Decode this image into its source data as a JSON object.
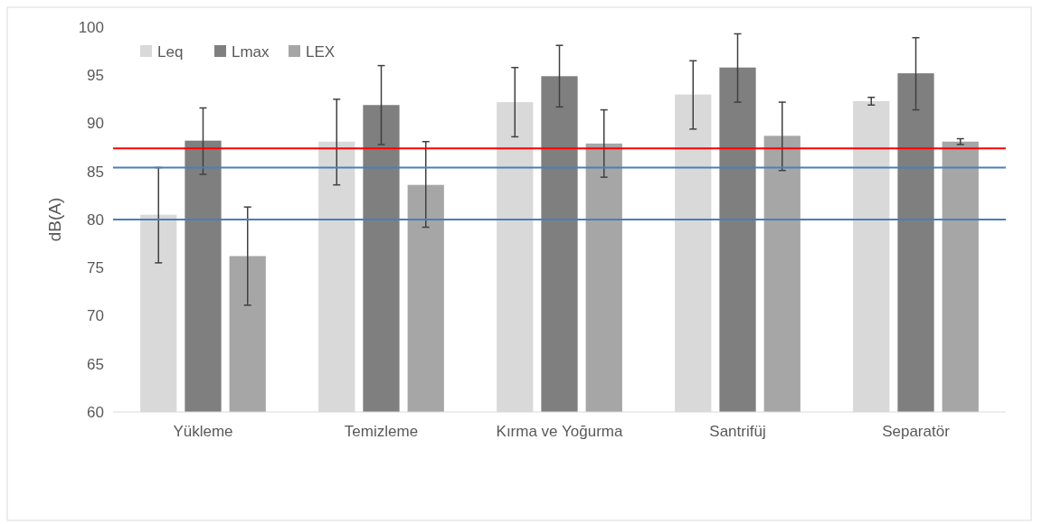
{
  "chart_data": {
    "type": "bar",
    "ylabel": "dB(A)",
    "categories": [
      "Yükleme",
      "Temizleme",
      "Kırma ve Yoğurma",
      "Santrifüj",
      "Separatör"
    ],
    "series": [
      {
        "name": "Leq",
        "color": "#d9d9d9",
        "values": [
          80.5,
          88.1,
          92.2,
          93.0,
          92.3
        ],
        "errors": [
          [
            75.5,
            85.4
          ],
          [
            83.6,
            92.5
          ],
          [
            88.6,
            95.8
          ],
          [
            89.4,
            96.5
          ],
          [
            91.9,
            92.7
          ]
        ]
      },
      {
        "name": "Lmax",
        "color": "#7f7f7f",
        "values": [
          88.2,
          91.9,
          94.9,
          95.8,
          95.2
        ],
        "errors": [
          [
            84.7,
            91.6
          ],
          [
            87.8,
            96.0
          ],
          [
            91.7,
            98.1
          ],
          [
            92.2,
            99.3
          ],
          [
            91.4,
            98.9
          ]
        ]
      },
      {
        "name": "LEX",
        "color": "#a6a6a6",
        "values": [
          76.2,
          83.6,
          87.9,
          88.7,
          88.1
        ],
        "errors": [
          [
            71.1,
            81.3
          ],
          [
            79.2,
            88.1
          ],
          [
            84.4,
            91.4
          ],
          [
            85.1,
            92.2
          ],
          [
            87.8,
            88.4
          ]
        ]
      }
    ],
    "ylim": [
      60,
      100
    ],
    "yticks": [
      60,
      65,
      70,
      75,
      80,
      85,
      90,
      95,
      100
    ],
    "grid": false,
    "legend": "top left",
    "ref_lines": [
      {
        "axis": "y",
        "value": 87.4,
        "color": "#ff0000"
      },
      {
        "axis": "y",
        "value": 85.4,
        "color": "#4a7ebb"
      },
      {
        "axis": "y",
        "value": 80.0,
        "color": "#4a7ebb"
      }
    ]
  }
}
